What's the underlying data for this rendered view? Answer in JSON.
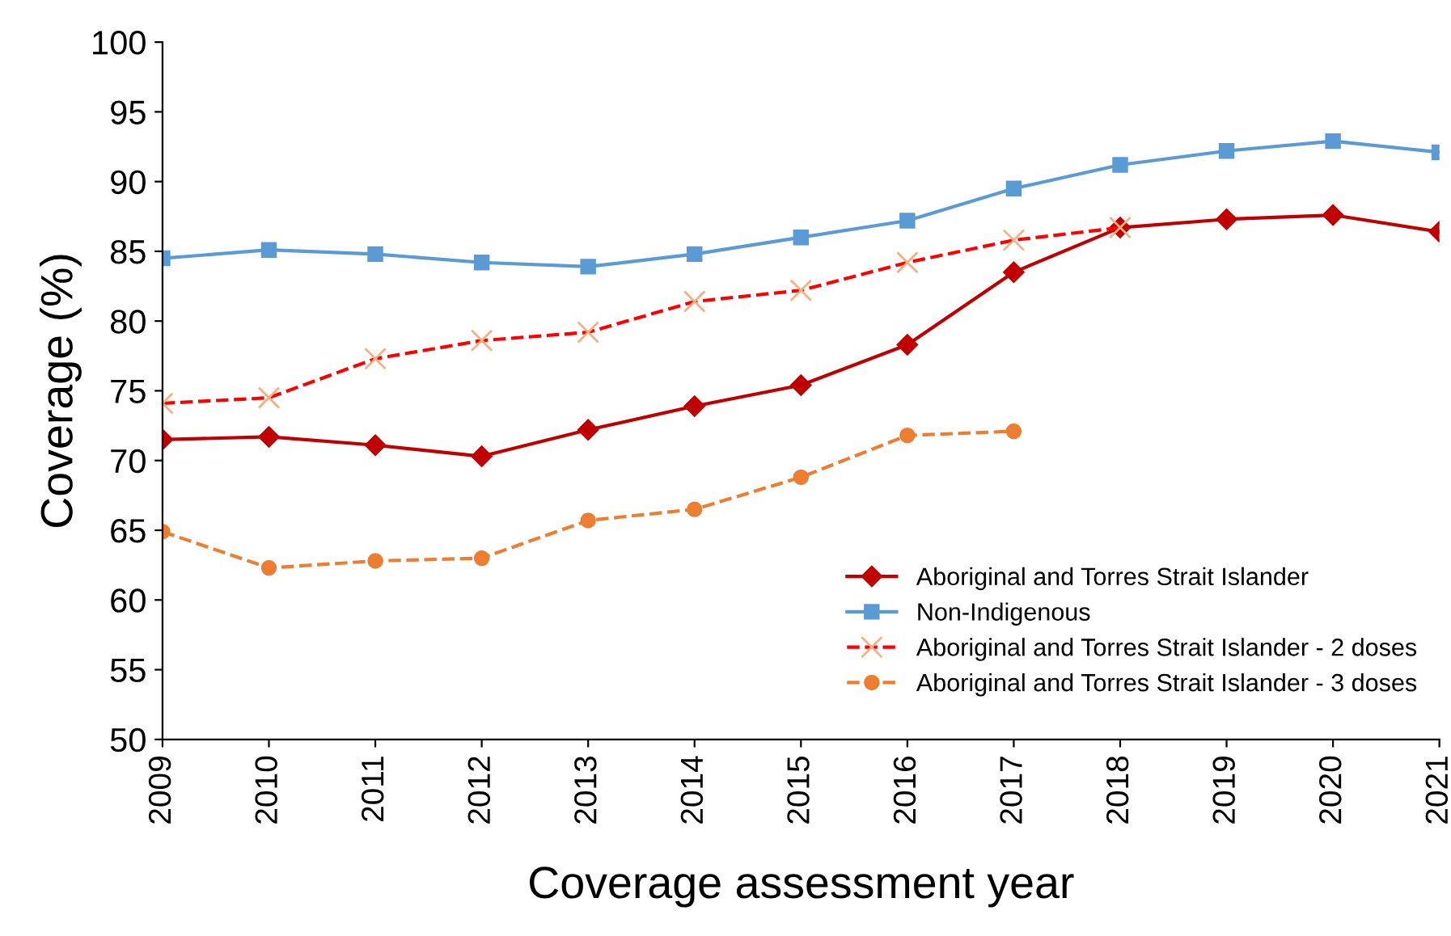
{
  "chart_data": {
    "type": "line",
    "xlabel": "Coverage assessment year",
    "ylabel": "Coverage (%)",
    "x": [
      2009,
      2010,
      2011,
      2012,
      2013,
      2014,
      2015,
      2016,
      2017,
      2018,
      2019,
      2020,
      2021
    ],
    "xlim": [
      2009,
      2021
    ],
    "xticks": [
      2009,
      2010,
      2011,
      2012,
      2013,
      2014,
      2015,
      2016,
      2017,
      2018,
      2019,
      2020,
      2021
    ],
    "ylim": [
      50,
      100
    ],
    "yticks": [
      50,
      55,
      60,
      65,
      70,
      75,
      80,
      85,
      90,
      95,
      100
    ],
    "grid": false,
    "legend": "bottom right",
    "series": [
      {
        "name": "Aboriginal and Torres Strait Islander",
        "color": "#c00000",
        "marker": "diamond",
        "line_style": "solid",
        "values": [
          71.5,
          71.7,
          71.1,
          70.3,
          72.2,
          73.9,
          75.4,
          78.3,
          83.5,
          86.7,
          87.3,
          87.6,
          86.4
        ]
      },
      {
        "name": "Non-Indigenous",
        "color": "#5b9bd5",
        "marker": "square",
        "line_style": "solid",
        "values": [
          84.5,
          85.1,
          84.8,
          84.2,
          83.9,
          84.8,
          86.0,
          87.2,
          89.5,
          91.2,
          92.2,
          92.9,
          92.1
        ]
      },
      {
        "name": "Aboriginal and Torres Strait Islander - 2 doses",
        "color": "#ff0000",
        "marker": "cross",
        "line_style": "dashed",
        "values": [
          74.1,
          74.5,
          77.3,
          78.6,
          79.2,
          81.4,
          82.2,
          84.2,
          85.8,
          86.7,
          null,
          null,
          null
        ]
      },
      {
        "name": "Aboriginal and Torres Strait Islander - 3 doses",
        "color": "#ed7d31",
        "marker": "circle",
        "line_style": "dashed",
        "values": [
          64.9,
          62.3,
          62.8,
          63.0,
          65.7,
          66.5,
          68.8,
          71.8,
          72.1,
          null,
          null,
          null,
          null
        ]
      }
    ]
  }
}
